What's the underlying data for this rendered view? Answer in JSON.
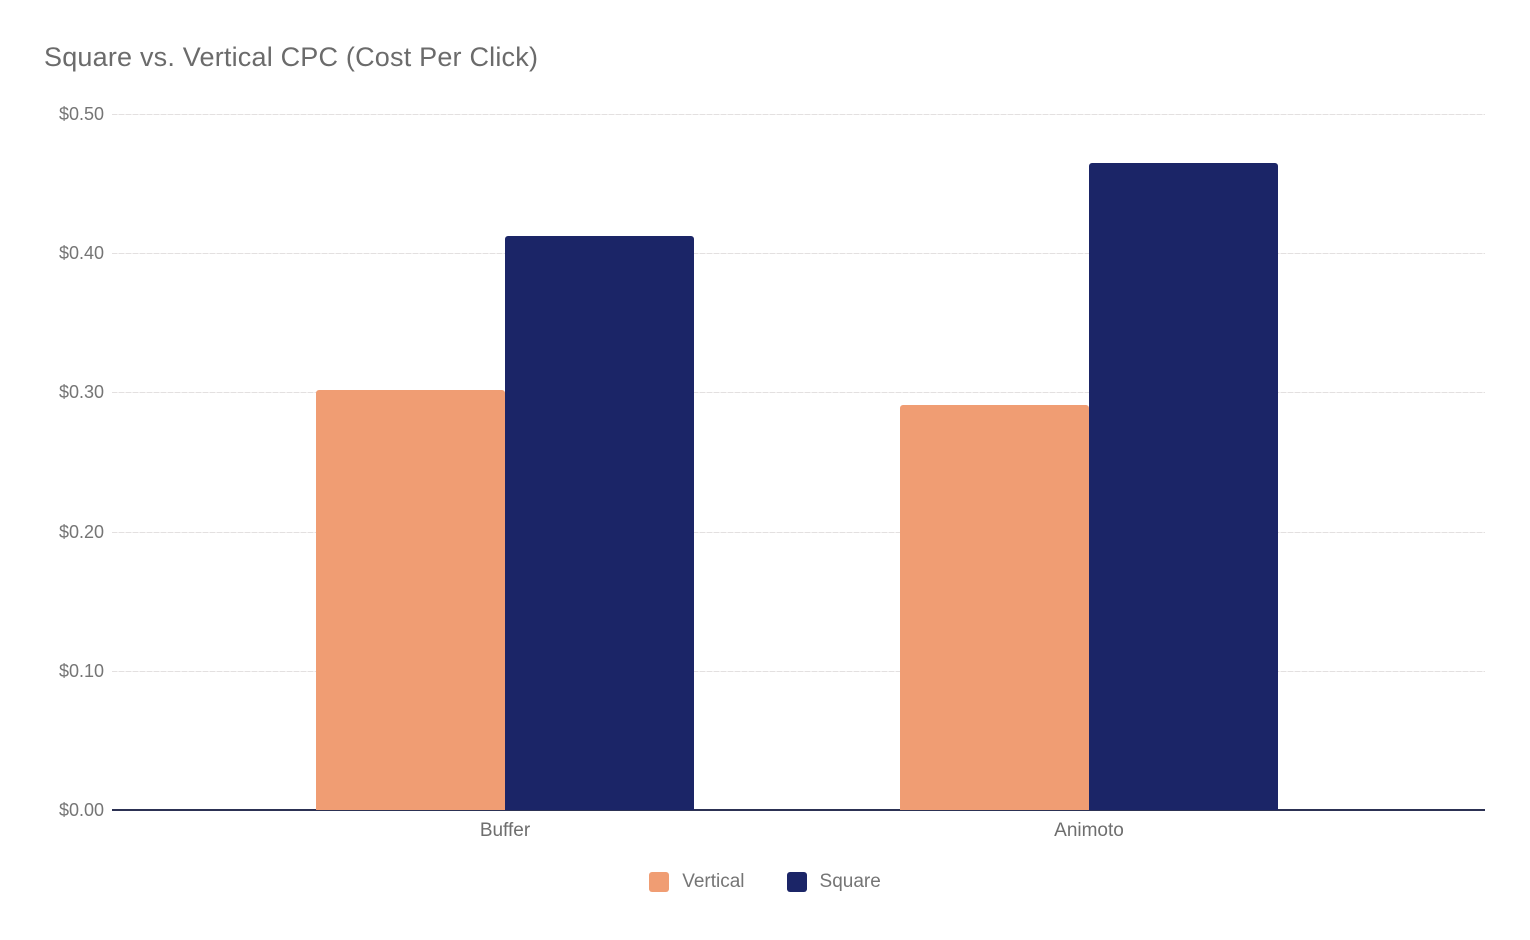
{
  "chart_data": {
    "type": "bar",
    "title": "Square vs. Vertical CPC (Cost Per Click)",
    "categories": [
      "Buffer",
      "Animoto"
    ],
    "series": [
      {
        "name": "Vertical",
        "color": "#F09D73",
        "values": [
          0.302,
          0.291
        ]
      },
      {
        "name": "Square",
        "color": "#1B2567",
        "values": [
          0.412,
          0.465
        ]
      }
    ],
    "xlabel": "",
    "ylabel": "",
    "ylim": [
      0,
      0.5
    ],
    "y_ticks": [
      {
        "value": 0.5,
        "label": "$0.50"
      },
      {
        "value": 0.4,
        "label": "$0.40"
      },
      {
        "value": 0.3,
        "label": "$0.30"
      },
      {
        "value": 0.2,
        "label": "$0.20"
      },
      {
        "value": 0.1,
        "label": "$0.10"
      },
      {
        "value": 0.0,
        "label": "$0.00"
      }
    ],
    "grid": true,
    "legend_position": "bottom",
    "value_prefix": "$"
  },
  "colors": {
    "background": "#ffffff",
    "title_text": "#6b6b6b",
    "axis_text": "#757575",
    "gridline": "#e3e0e0",
    "baseline": "#2c3153"
  }
}
